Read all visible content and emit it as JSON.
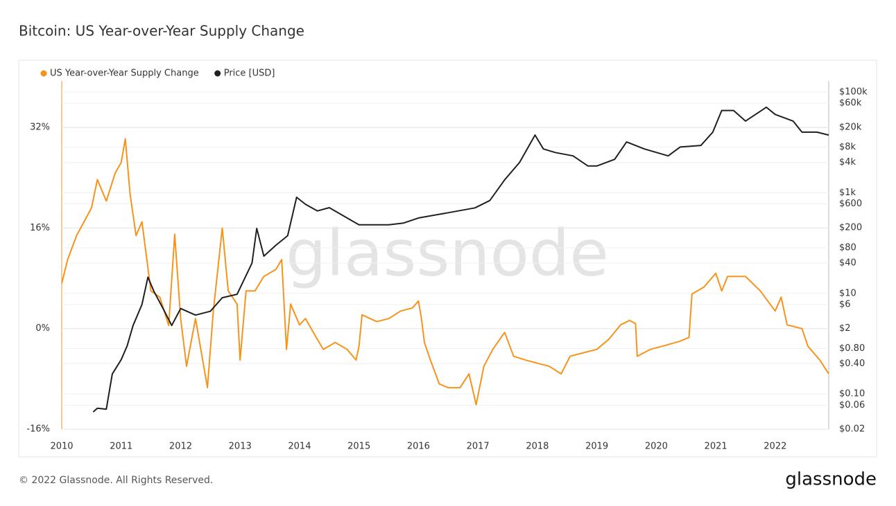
{
  "chart_data": {
    "type": "line",
    "title": "Bitcoin: US Year-over-Year Supply Change",
    "watermark": "glassnode",
    "footer": "© 2022 Glassnode. All Rights Reserved.",
    "brand": "glassnode",
    "xlim": [
      2010,
      2022.9
    ],
    "xticks": [
      2010,
      2011,
      2012,
      2013,
      2014,
      2015,
      2016,
      2017,
      2018,
      2019,
      2020,
      2021,
      2022
    ],
    "ylim": [
      -16,
      39.4
    ],
    "yticks": [
      {
        "value": -16,
        "label": "-16%"
      },
      {
        "value": 0,
        "label": "0%"
      },
      {
        "value": 16,
        "label": "16%"
      },
      {
        "value": 32,
        "label": "32%"
      }
    ],
    "y2lim": [
      0.02,
      166000
    ],
    "y2log": true,
    "y2ticks": [
      {
        "value": 0.02,
        "label": "$0.02"
      },
      {
        "value": 0.06,
        "label": "$0.06"
      },
      {
        "value": 0.1,
        "label": "$0.10"
      },
      {
        "value": 0.4,
        "label": "$0.40"
      },
      {
        "value": 0.8,
        "label": "$0.80"
      },
      {
        "value": 2,
        "label": "$2"
      },
      {
        "value": 6,
        "label": "$6"
      },
      {
        "value": 10,
        "label": "$10"
      },
      {
        "value": 40,
        "label": "$40"
      },
      {
        "value": 80,
        "label": "$80"
      },
      {
        "value": 200,
        "label": "$200"
      },
      {
        "value": 600,
        "label": "$600"
      },
      {
        "value": 1000,
        "label": "$1k"
      },
      {
        "value": 4000,
        "label": "$4k"
      },
      {
        "value": 8000,
        "label": "$8k"
      },
      {
        "value": 20000,
        "label": "$20k"
      },
      {
        "value": 60000,
        "label": "$60k"
      },
      {
        "value": 100000,
        "label": "$100k"
      }
    ],
    "grid": true,
    "legend": "top-left",
    "series": [
      {
        "name": "US Year-over-Year Supply Change",
        "color": "#f7931a",
        "x": [
          2010.0,
          2010.1,
          2010.25,
          2010.5,
          2010.6,
          2010.75,
          2010.9,
          2011.0,
          2011.07,
          2011.15,
          2011.25,
          2011.35,
          2011.5,
          2011.65,
          2011.8,
          2011.9,
          2012.0,
          2012.1,
          2012.25,
          2012.45,
          2012.55,
          2012.7,
          2012.8,
          2012.95,
          2013.0,
          2013.1,
          2013.25,
          2013.4,
          2013.6,
          2013.7,
          2013.78,
          2013.85,
          2014.0,
          2014.1,
          2014.3,
          2014.4,
          2014.6,
          2014.8,
          2014.95,
          2015.0,
          2015.05,
          2015.3,
          2015.5,
          2015.7,
          2015.9,
          2016.0,
          2016.05,
          2016.1,
          2016.2,
          2016.35,
          2016.5,
          2016.7,
          2016.85,
          2016.97,
          2017.1,
          2017.25,
          2017.45,
          2017.6,
          2017.8,
          2018.0,
          2018.2,
          2018.4,
          2018.55,
          2018.75,
          2019.0,
          2019.2,
          2019.4,
          2019.55,
          2019.65,
          2019.68,
          2019.9,
          2020.1,
          2020.4,
          2020.55,
          2020.6,
          2020.8,
          2021.0,
          2021.1,
          2021.2,
          2021.5,
          2021.75,
          2022.0,
          2022.1,
          2022.2,
          2022.45,
          2022.55,
          2022.75,
          2022.9
        ],
        "values": [
          7.2,
          11,
          14.8,
          19.2,
          23.7,
          20.3,
          24.8,
          26.4,
          30.2,
          21.4,
          14.8,
          17,
          6,
          5,
          0.5,
          15,
          1.6,
          -6,
          1.6,
          -9.4,
          2.8,
          16,
          6,
          3.9,
          -5,
          6,
          6,
          8.3,
          9.4,
          11,
          -3.3,
          3.9,
          0.6,
          1.6,
          -1.7,
          -3.3,
          -2.2,
          -3.3,
          -5,
          -2.8,
          2.2,
          1.1,
          1.6,
          2.8,
          3.3,
          4.4,
          1.6,
          -2.2,
          -5,
          -8.8,
          -9.4,
          -9.4,
          -7.2,
          -12.1,
          -6,
          -3.3,
          -0.6,
          -4.4,
          -5,
          -5.5,
          -6,
          -7.2,
          -4.4,
          -3.9,
          -3.3,
          -1.7,
          0.6,
          1.3,
          0.8,
          -4.4,
          -3.3,
          -2.8,
          -2,
          -1.4,
          5.5,
          6.6,
          8.8,
          6,
          8.3,
          8.3,
          6,
          2.8,
          5,
          0.6,
          0,
          -2.8,
          -5,
          -7.2
        ]
      },
      {
        "name": "Price [USD]",
        "color": "#1f1f1f",
        "axis": "y2",
        "x": [
          2010.53,
          2010.6,
          2010.75,
          2010.85,
          2011.0,
          2011.1,
          2011.2,
          2011.35,
          2011.45,
          2011.55,
          2011.7,
          2011.85,
          2012.0,
          2012.25,
          2012.5,
          2012.7,
          2012.95,
          2013.2,
          2013.28,
          2013.4,
          2013.6,
          2013.8,
          2013.95,
          2014.1,
          2014.3,
          2014.5,
          2014.8,
          2015.0,
          2015.25,
          2015.5,
          2015.75,
          2016.0,
          2016.5,
          2016.95,
          2017.2,
          2017.45,
          2017.7,
          2017.96,
          2018.1,
          2018.3,
          2018.6,
          2018.85,
          2019.0,
          2019.3,
          2019.5,
          2019.8,
          2020.2,
          2020.4,
          2020.75,
          2020.95,
          2021.1,
          2021.3,
          2021.5,
          2021.85,
          2022.0,
          2022.3,
          2022.45,
          2022.7,
          2022.9
        ],
        "values": [
          0.044,
          0.052,
          0.05,
          0.25,
          0.48,
          0.9,
          2.3,
          6,
          21,
          11,
          5.1,
          2.3,
          5,
          3.7,
          4.4,
          8.2,
          9.6,
          40,
          195,
          55,
          90,
          140,
          810,
          590,
          435,
          505,
          315,
          230,
          230,
          230,
          250,
          315,
          400,
          500,
          700,
          1800,
          4000,
          14000,
          7400,
          6300,
          5400,
          3400,
          3400,
          4600,
          10200,
          7400,
          5400,
          8100,
          8700,
          16000,
          43000,
          43000,
          26500,
          50000,
          36000,
          26500,
          16000,
          16000,
          14000
        ]
      }
    ]
  }
}
